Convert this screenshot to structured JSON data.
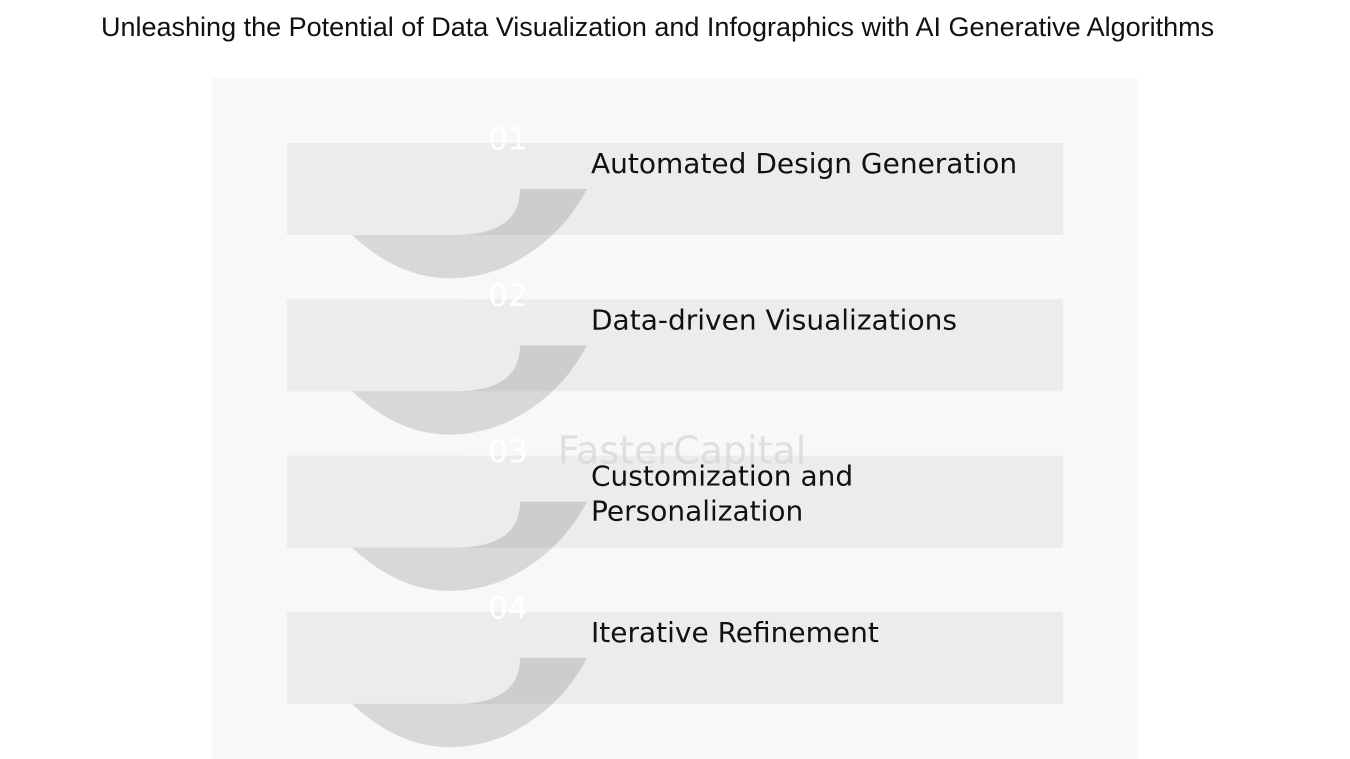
{
  "header": {
    "title": "Unleashing the Potential of Data Visualization and Infographics with AI Generative Algorithms"
  },
  "watermark": "FasterCapital",
  "steps": [
    {
      "number": "01",
      "label": [
        "Automated Design Generation"
      ],
      "color": "#a6a8a9"
    },
    {
      "number": "02",
      "label": [
        "Data-driven Visualizations"
      ],
      "color": "#4f7786"
    },
    {
      "number": "03",
      "label": [
        "Customization and",
        "Personalization"
      ],
      "color": "#17b2b7"
    },
    {
      "number": "04",
      "label": [
        "Iterative Refinement"
      ],
      "color": "#2f3c48"
    }
  ]
}
